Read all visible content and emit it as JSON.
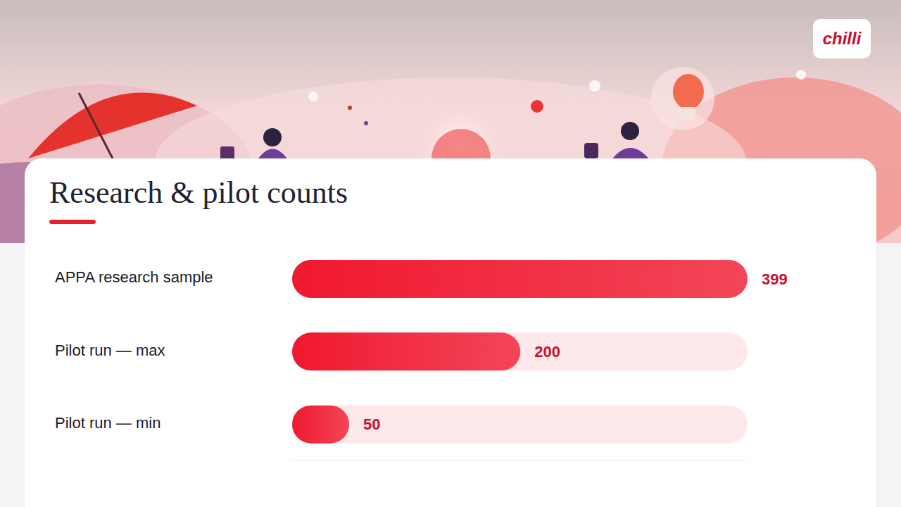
{
  "logo": "chilli",
  "chart_data": {
    "type": "bar",
    "title": "Research & pilot counts",
    "orientation": "horizontal",
    "categories": [
      "APPA research sample",
      "Pilot run — max",
      "Pilot run — min"
    ],
    "values": [
      399,
      200,
      50
    ],
    "color": "#f0182f",
    "xlim": [
      0,
      399
    ],
    "xticks": [],
    "data_labels": true,
    "tick_labels": "y",
    "grid": false
  }
}
